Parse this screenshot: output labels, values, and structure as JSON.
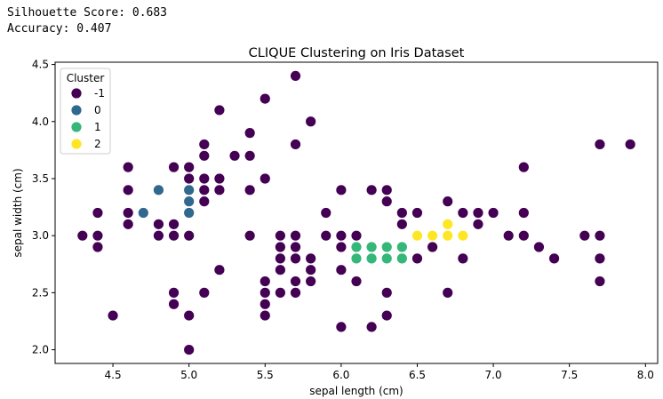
{
  "output": {
    "silhouette_line": "Silhouette Score: 0.683",
    "accuracy_line": "Accuracy: 0.407"
  },
  "chart_data": {
    "type": "scatter",
    "title": "CLIQUE Clustering on Iris Dataset",
    "xlabel": "sepal length (cm)",
    "ylabel": "sepal width (cm)",
    "xlim": [
      4.12,
      8.08
    ],
    "ylim": [
      1.88,
      4.52
    ],
    "xticks": [
      4.5,
      5.0,
      5.5,
      6.0,
      6.5,
      7.0,
      7.5,
      8.0
    ],
    "xtick_labels": [
      "4.5",
      "5.0",
      "5.5",
      "6.0",
      "6.5",
      "7.0",
      "7.5",
      "8.0"
    ],
    "yticks": [
      2.0,
      2.5,
      3.0,
      3.5,
      4.0,
      4.5
    ],
    "ytick_labels": [
      "2.0",
      "2.5",
      "3.0",
      "3.5",
      "4.0",
      "4.5"
    ],
    "grid": false,
    "legend": {
      "title": "Cluster",
      "placement": "top-left",
      "entries": [
        {
          "label": "-1",
          "color": "#440154"
        },
        {
          "label": "0",
          "color": "#31688e"
        },
        {
          "label": "1",
          "color": "#35b779"
        },
        {
          "label": "2",
          "color": "#fde725"
        }
      ]
    },
    "series": [
      {
        "name": "-1",
        "color": "#440154",
        "points": [
          [
            4.3,
            3.0
          ],
          [
            4.4,
            3.2
          ],
          [
            4.4,
            3.0
          ],
          [
            4.4,
            2.9
          ],
          [
            4.5,
            2.3
          ],
          [
            4.6,
            3.6
          ],
          [
            4.6,
            3.4
          ],
          [
            4.6,
            3.2
          ],
          [
            4.6,
            3.1
          ],
          [
            4.8,
            3.1
          ],
          [
            4.8,
            3.0
          ],
          [
            4.9,
            3.6
          ],
          [
            4.9,
            3.1
          ],
          [
            4.9,
            3.0
          ],
          [
            4.9,
            2.5
          ],
          [
            4.9,
            2.4
          ],
          [
            5.0,
            3.6
          ],
          [
            5.0,
            3.5
          ],
          [
            5.0,
            3.0
          ],
          [
            5.0,
            2.3
          ],
          [
            5.0,
            2.0
          ],
          [
            5.1,
            3.8
          ],
          [
            5.1,
            3.7
          ],
          [
            5.1,
            3.5
          ],
          [
            5.1,
            3.4
          ],
          [
            5.1,
            3.3
          ],
          [
            5.1,
            2.5
          ],
          [
            5.2,
            4.1
          ],
          [
            5.2,
            3.5
          ],
          [
            5.2,
            3.4
          ],
          [
            5.2,
            2.7
          ],
          [
            5.3,
            3.7
          ],
          [
            5.4,
            3.9
          ],
          [
            5.4,
            3.7
          ],
          [
            5.4,
            3.4
          ],
          [
            5.4,
            3.0
          ],
          [
            5.5,
            4.2
          ],
          [
            5.5,
            3.5
          ],
          [
            5.5,
            2.6
          ],
          [
            5.5,
            2.5
          ],
          [
            5.5,
            2.4
          ],
          [
            5.5,
            2.3
          ],
          [
            5.6,
            3.0
          ],
          [
            5.6,
            2.9
          ],
          [
            5.6,
            2.8
          ],
          [
            5.6,
            2.7
          ],
          [
            5.6,
            2.5
          ],
          [
            5.7,
            4.4
          ],
          [
            5.7,
            3.8
          ],
          [
            5.7,
            3.0
          ],
          [
            5.7,
            2.9
          ],
          [
            5.7,
            2.8
          ],
          [
            5.7,
            2.6
          ],
          [
            5.7,
            2.5
          ],
          [
            5.8,
            4.0
          ],
          [
            5.8,
            2.8
          ],
          [
            5.8,
            2.7
          ],
          [
            5.8,
            2.6
          ],
          [
            5.9,
            3.2
          ],
          [
            5.9,
            3.0
          ],
          [
            6.0,
            3.4
          ],
          [
            6.0,
            3.0
          ],
          [
            6.0,
            2.9
          ],
          [
            6.0,
            2.7
          ],
          [
            6.0,
            2.2
          ],
          [
            6.1,
            3.0
          ],
          [
            6.1,
            2.6
          ],
          [
            6.2,
            3.4
          ],
          [
            6.2,
            2.2
          ],
          [
            6.3,
            3.4
          ],
          [
            6.3,
            3.3
          ],
          [
            6.3,
            2.5
          ],
          [
            6.3,
            2.3
          ],
          [
            6.4,
            3.2
          ],
          [
            6.4,
            3.1
          ],
          [
            6.5,
            3.2
          ],
          [
            6.5,
            2.8
          ],
          [
            6.6,
            2.9
          ],
          [
            6.7,
            3.3
          ],
          [
            6.7,
            2.5
          ],
          [
            6.8,
            3.2
          ],
          [
            6.8,
            2.8
          ],
          [
            6.9,
            3.2
          ],
          [
            6.9,
            3.1
          ],
          [
            7.0,
            3.2
          ],
          [
            7.1,
            3.0
          ],
          [
            7.2,
            3.6
          ],
          [
            7.2,
            3.2
          ],
          [
            7.2,
            3.0
          ],
          [
            7.3,
            2.9
          ],
          [
            7.4,
            2.8
          ],
          [
            7.6,
            3.0
          ],
          [
            7.7,
            3.8
          ],
          [
            7.7,
            3.0
          ],
          [
            7.7,
            2.8
          ],
          [
            7.7,
            2.6
          ],
          [
            7.9,
            3.8
          ]
        ]
      },
      {
        "name": "0",
        "color": "#31688e",
        "points": [
          [
            4.7,
            3.2
          ],
          [
            4.8,
            3.4
          ],
          [
            5.0,
            3.4
          ],
          [
            5.0,
            3.3
          ],
          [
            5.0,
            3.2
          ]
        ]
      },
      {
        "name": "1",
        "color": "#35b779",
        "points": [
          [
            6.1,
            2.9
          ],
          [
            6.1,
            2.8
          ],
          [
            6.2,
            2.9
          ],
          [
            6.2,
            2.8
          ],
          [
            6.3,
            2.9
          ],
          [
            6.3,
            2.8
          ],
          [
            6.4,
            2.9
          ],
          [
            6.4,
            2.8
          ]
        ]
      },
      {
        "name": "2",
        "color": "#fde725",
        "points": [
          [
            6.5,
            3.0
          ],
          [
            6.6,
            3.0
          ],
          [
            6.7,
            3.1
          ],
          [
            6.7,
            3.0
          ],
          [
            6.8,
            3.0
          ]
        ]
      }
    ]
  }
}
